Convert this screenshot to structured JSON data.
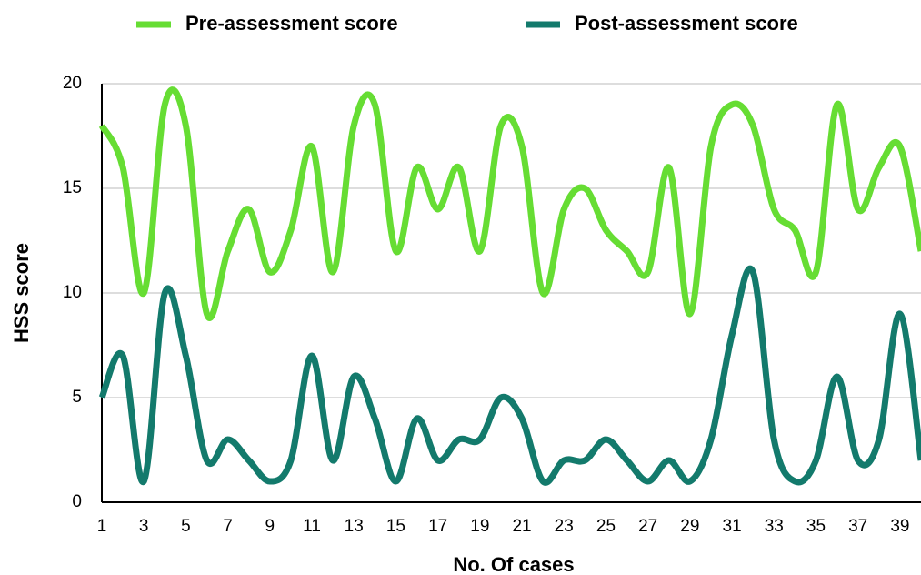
{
  "chart_data": {
    "type": "line",
    "xlabel": "No. Of cases",
    "ylabel": "HSS score",
    "x": [
      1,
      2,
      3,
      4,
      5,
      6,
      7,
      8,
      9,
      10,
      11,
      12,
      13,
      14,
      15,
      16,
      17,
      18,
      19,
      20,
      21,
      22,
      23,
      24,
      25,
      26,
      27,
      28,
      29,
      30,
      31,
      32,
      33,
      34,
      35,
      36,
      37,
      38,
      39,
      40
    ],
    "series": [
      {
        "name": "Pre-assessment score",
        "color": "#66dd33",
        "values": [
          18,
          16,
          10,
          19,
          18,
          9,
          12,
          14,
          11,
          13,
          17,
          11,
          18,
          19,
          12,
          16,
          14,
          16,
          12,
          18,
          17,
          10,
          14,
          15,
          13,
          12,
          11,
          16,
          9,
          17,
          19,
          18,
          14,
          13,
          11,
          19,
          14,
          16,
          17,
          12
        ]
      },
      {
        "name": "Post-assessment score",
        "color": "#137a6c",
        "values": [
          5,
          7,
          1,
          10,
          7,
          2,
          3,
          2,
          1,
          2,
          7,
          2,
          6,
          4,
          1,
          4,
          2,
          3,
          3,
          5,
          4,
          1,
          2,
          2,
          3,
          2,
          1,
          2,
          1,
          3,
          8,
          11,
          3,
          1,
          2,
          6,
          2,
          3,
          9,
          2
        ]
      }
    ],
    "xlim": [
      1,
      40
    ],
    "xticks": [
      1,
      3,
      5,
      7,
      9,
      11,
      13,
      15,
      17,
      19,
      21,
      23,
      25,
      27,
      29,
      31,
      33,
      35,
      37,
      39
    ],
    "ylim": [
      0,
      20
    ],
    "yticks": [
      0,
      5,
      10,
      15,
      20
    ],
    "grid": true,
    "legend": "top"
  }
}
